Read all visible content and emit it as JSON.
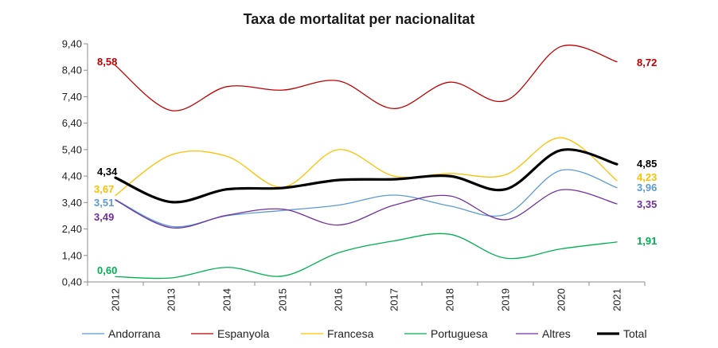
{
  "chart_data": {
    "type": "line",
    "title": "Taxa de mortalitat per nacionalitat",
    "categories": [
      "2012",
      "2013",
      "2014",
      "2015",
      "2016",
      "2017",
      "2018",
      "2019",
      "2020",
      "2021"
    ],
    "y_ticks": [
      "0,40",
      "1,40",
      "2,40",
      "3,40",
      "4,40",
      "5,40",
      "6,40",
      "7,40",
      "8,40",
      "9,40"
    ],
    "ylim": [
      0.4,
      9.4
    ],
    "grid": false,
    "legend_position": "bottom",
    "series": [
      {
        "name": "Andorrana",
        "color": "#5b9bd5",
        "width": 1.3,
        "values": [
          3.51,
          2.5,
          2.9,
          3.1,
          3.3,
          3.68,
          3.27,
          2.95,
          4.62,
          3.96
        ],
        "start_label": "3,51",
        "end_label": "3,96"
      },
      {
        "name": "Espanyola",
        "color": "#c00000",
        "width": 1.3,
        "values": [
          8.58,
          6.88,
          7.78,
          7.65,
          8.0,
          6.95,
          7.95,
          7.25,
          9.3,
          8.72
        ],
        "start_label": "8,58",
        "end_label": "8,72"
      },
      {
        "name": "Francesa",
        "color": "#ffc000",
        "width": 1.3,
        "values": [
          3.67,
          5.2,
          5.15,
          3.98,
          5.4,
          4.4,
          4.5,
          4.45,
          5.85,
          4.23
        ],
        "start_label": "3,67",
        "end_label": "4,23"
      },
      {
        "name": "Portuguesa",
        "color": "#00b050",
        "width": 1.3,
        "values": [
          0.6,
          0.55,
          0.95,
          0.62,
          1.5,
          1.95,
          2.2,
          1.3,
          1.65,
          1.91
        ],
        "start_label": "0,60",
        "end_label": "1,91"
      },
      {
        "name": "Altres",
        "color": "#7030a0",
        "width": 1.3,
        "values": [
          3.49,
          2.45,
          2.92,
          3.15,
          2.55,
          3.3,
          3.65,
          2.75,
          3.88,
          3.35
        ],
        "start_label": "3,49",
        "end_label": "3,35"
      },
      {
        "name": "Total",
        "color": "#000000",
        "width": 3.2,
        "values": [
          4.34,
          3.42,
          3.9,
          3.95,
          4.25,
          4.28,
          4.4,
          3.9,
          5.38,
          4.85
        ],
        "start_label": "4,34",
        "end_label": "4,85"
      }
    ]
  }
}
